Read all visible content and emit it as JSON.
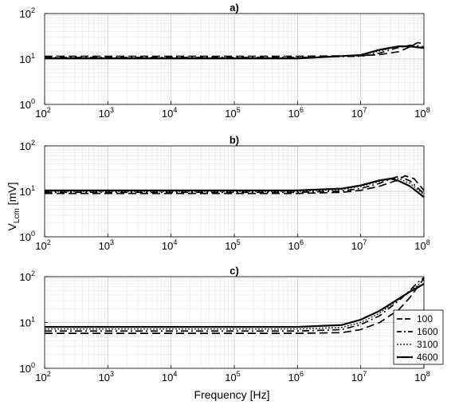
{
  "chart_data": {
    "type": "line",
    "x_scale": "log",
    "y_scale": "log",
    "xlim": [
      100,
      100000000
    ],
    "ylim": [
      1,
      100
    ],
    "x_ticks": [
      100,
      1000,
      10000,
      100000,
      1000000,
      10000000,
      100000000
    ],
    "x_tick_labels": [
      {
        "base": "10",
        "exp": "2"
      },
      {
        "base": "10",
        "exp": "3"
      },
      {
        "base": "10",
        "exp": "4"
      },
      {
        "base": "10",
        "exp": "5"
      },
      {
        "base": "10",
        "exp": "6"
      },
      {
        "base": "10",
        "exp": "7"
      },
      {
        "base": "10",
        "exp": "8"
      }
    ],
    "y_ticks": [
      1,
      10,
      100
    ],
    "y_tick_labels": [
      {
        "base": "10",
        "exp": "0"
      },
      {
        "base": "10",
        "exp": "1"
      },
      {
        "base": "10",
        "exp": "2"
      }
    ],
    "grid": true,
    "xlabel": "Frequency [Hz]",
    "ylabel": {
      "main": "V",
      "sub": "Lcm",
      "unit": " [mV]"
    },
    "legend": {
      "placement": "bottom-right of panel c",
      "entries": [
        "100",
        "1600",
        "3100",
        "4600"
      ]
    },
    "series_styles": [
      {
        "name": "100",
        "style": "dashed",
        "color": "#000000"
      },
      {
        "name": "1600",
        "style": "dashdot",
        "color": "#000000"
      },
      {
        "name": "3100",
        "style": "dotted",
        "color": "#000000"
      },
      {
        "name": "4600",
        "style": "solid",
        "color": "#000000"
      }
    ],
    "panels": [
      {
        "title": "a)",
        "series": [
          {
            "name": "100",
            "points": [
              [
                100,
                11.5
              ],
              [
                1000000,
                11.5
              ],
              [
                10000000,
                11.8
              ],
              [
                20000000,
                12.5
              ],
              [
                40000000,
                14.5
              ],
              [
                60000000,
                18.5
              ],
              [
                80000000,
                23.0
              ],
              [
                100000000,
                21.5
              ]
            ]
          },
          {
            "name": "1600",
            "points": [
              [
                100,
                10.8
              ],
              [
                1000000,
                10.8
              ],
              [
                10000000,
                11.5
              ],
              [
                20000000,
                13.5
              ],
              [
                40000000,
                18.0
              ],
              [
                60000000,
                20.0
              ],
              [
                80000000,
                19.5
              ],
              [
                100000000,
                18.5
              ]
            ]
          },
          {
            "name": "3100",
            "points": [
              [
                100,
                10.6
              ],
              [
                1000000,
                10.6
              ],
              [
                10000000,
                12.0
              ],
              [
                20000000,
                15.0
              ],
              [
                40000000,
                19.0
              ],
              [
                60000000,
                19.5
              ],
              [
                80000000,
                18.5
              ],
              [
                100000000,
                18.0
              ]
            ]
          },
          {
            "name": "4600",
            "points": [
              [
                100,
                10.3
              ],
              [
                1000000,
                10.3
              ],
              [
                10000000,
                12.2
              ],
              [
                20000000,
                16.0
              ],
              [
                40000000,
                19.0
              ],
              [
                60000000,
                19.0
              ],
              [
                80000000,
                18.0
              ],
              [
                100000000,
                17.5
              ]
            ]
          }
        ]
      },
      {
        "title": "b)",
        "series": [
          {
            "name": "100",
            "points": [
              [
                100,
                9.0
              ],
              [
                1000000,
                9.0
              ],
              [
                5000000,
                9.5
              ],
              [
                10000000,
                10.5
              ],
              [
                20000000,
                13.0
              ],
              [
                40000000,
                18.0
              ],
              [
                50000000,
                22.0
              ],
              [
                70000000,
                19.0
              ],
              [
                100000000,
                10.5
              ]
            ]
          },
          {
            "name": "1600",
            "points": [
              [
                100,
                9.5
              ],
              [
                1000000,
                9.5
              ],
              [
                5000000,
                10.2
              ],
              [
                10000000,
                11.5
              ],
              [
                20000000,
                15.0
              ],
              [
                30000000,
                19.0
              ],
              [
                40000000,
                21.5
              ],
              [
                60000000,
                17.0
              ],
              [
                100000000,
                9.0
              ]
            ]
          },
          {
            "name": "3100",
            "points": [
              [
                100,
                10.0
              ],
              [
                1000000,
                10.0
              ],
              [
                5000000,
                11.0
              ],
              [
                10000000,
                12.8
              ],
              [
                20000000,
                16.5
              ],
              [
                30000000,
                19.5
              ],
              [
                40000000,
                19.0
              ],
              [
                60000000,
                15.0
              ],
              [
                100000000,
                8.5
              ]
            ]
          },
          {
            "name": "4600",
            "points": [
              [
                100,
                10.5
              ],
              [
                1000000,
                10.5
              ],
              [
                5000000,
                11.5
              ],
              [
                10000000,
                13.5
              ],
              [
                20000000,
                17.5
              ],
              [
                30000000,
                19.0
              ],
              [
                40000000,
                17.0
              ],
              [
                60000000,
                13.0
              ],
              [
                100000000,
                7.5
              ]
            ]
          }
        ]
      },
      {
        "title": "c)",
        "series": [
          {
            "name": "100",
            "points": [
              [
                100,
                5.8
              ],
              [
                1000000,
                5.8
              ],
              [
                5000000,
                6.0
              ],
              [
                10000000,
                7.0
              ],
              [
                20000000,
                10.0
              ],
              [
                40000000,
                19.0
              ],
              [
                60000000,
                35.0
              ],
              [
                80000000,
                60.0
              ],
              [
                100000000,
                92.0
              ]
            ]
          },
          {
            "name": "1600",
            "points": [
              [
                100,
                6.5
              ],
              [
                1000000,
                6.5
              ],
              [
                5000000,
                7.0
              ],
              [
                10000000,
                9.0
              ],
              [
                20000000,
                14.0
              ],
              [
                40000000,
                30.0
              ],
              [
                60000000,
                50.0
              ],
              [
                80000000,
                75.0
              ],
              [
                100000000,
                95.0
              ]
            ]
          },
          {
            "name": "3100",
            "points": [
              [
                100,
                7.2
              ],
              [
                1000000,
                7.2
              ],
              [
                5000000,
                7.8
              ],
              [
                10000000,
                10.0
              ],
              [
                20000000,
                16.0
              ],
              [
                40000000,
                32.0
              ],
              [
                60000000,
                48.0
              ],
              [
                80000000,
                65.0
              ],
              [
                100000000,
                85.0
              ]
            ]
          },
          {
            "name": "4600",
            "points": [
              [
                100,
                8.0
              ],
              [
                1000000,
                8.0
              ],
              [
                5000000,
                8.8
              ],
              [
                10000000,
                11.5
              ],
              [
                20000000,
                18.0
              ],
              [
                40000000,
                33.0
              ],
              [
                60000000,
                47.0
              ],
              [
                80000000,
                58.0
              ],
              [
                100000000,
                70.0
              ]
            ]
          }
        ]
      }
    ]
  }
}
